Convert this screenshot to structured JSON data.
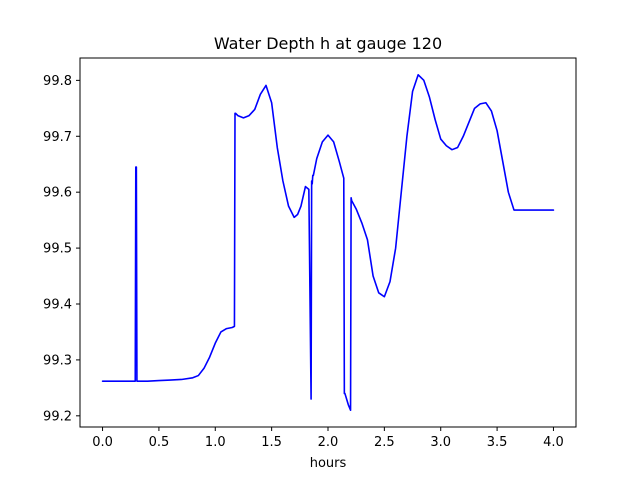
{
  "chart_data": {
    "type": "line",
    "title": "Water Depth h at gauge 120",
    "xlabel": "hours",
    "ylabel": "",
    "xlim": [
      -0.2,
      4.2
    ],
    "ylim": [
      99.18,
      99.84
    ],
    "xticks": [
      0.0,
      0.5,
      1.0,
      1.5,
      2.0,
      2.5,
      3.0,
      3.5,
      4.0
    ],
    "xtick_labels": [
      "0.0",
      "0.5",
      "1.0",
      "1.5",
      "2.0",
      "2.5",
      "3.0",
      "3.5",
      "4.0"
    ],
    "yticks": [
      99.2,
      99.3,
      99.4,
      99.5,
      99.6,
      99.7,
      99.8
    ],
    "ytick_labels": [
      "99.2",
      "99.3",
      "99.4",
      "99.5",
      "99.6",
      "99.7",
      "99.8"
    ],
    "grid": false,
    "legend": "none",
    "colors": {
      "line": "#0000ff",
      "axes": "#000000",
      "background": "#ffffff"
    },
    "series": [
      {
        "x": [
          0.0,
          0.28,
          0.29,
          0.295,
          0.3,
          0.305,
          0.31,
          0.32,
          0.4,
          0.5,
          0.6,
          0.7,
          0.8,
          0.85,
          0.9,
          0.95,
          1.0,
          1.05,
          1.1,
          1.15,
          1.17,
          1.175,
          1.18,
          1.2,
          1.25,
          1.3,
          1.35,
          1.4,
          1.45,
          1.5,
          1.55,
          1.6,
          1.65,
          1.7,
          1.73,
          1.76,
          1.8,
          1.83,
          1.85,
          1.855,
          1.86,
          1.865,
          1.87,
          1.9,
          1.95,
          2.0,
          2.05,
          2.1,
          2.14,
          2.145,
          2.15,
          2.18,
          2.2,
          2.205,
          2.21,
          2.25,
          2.3,
          2.35,
          2.4,
          2.45,
          2.5,
          2.55,
          2.6,
          2.65,
          2.7,
          2.75,
          2.8,
          2.85,
          2.9,
          2.95,
          3.0,
          3.05,
          3.1,
          3.15,
          3.2,
          3.25,
          3.3,
          3.35,
          3.4,
          3.45,
          3.5,
          3.55,
          3.6,
          3.65,
          3.7,
          3.75,
          3.8,
          3.85,
          3.9,
          3.95,
          4.0
        ],
        "y": [
          99.262,
          99.262,
          99.262,
          99.645,
          99.645,
          99.262,
          99.262,
          99.262,
          99.262,
          99.263,
          99.264,
          99.265,
          99.268,
          99.272,
          99.285,
          99.305,
          99.33,
          99.35,
          99.356,
          99.358,
          99.36,
          99.741,
          99.741,
          99.737,
          99.733,
          99.737,
          99.748,
          99.775,
          99.791,
          99.76,
          99.68,
          99.62,
          99.575,
          99.555,
          99.56,
          99.575,
          99.61,
          99.605,
          99.23,
          99.62,
          99.615,
          99.63,
          99.63,
          99.66,
          99.69,
          99.702,
          99.69,
          99.655,
          99.625,
          99.24,
          99.24,
          99.22,
          99.21,
          99.59,
          99.585,
          99.57,
          99.545,
          99.515,
          99.45,
          99.42,
          99.413,
          99.44,
          99.5,
          99.6,
          99.7,
          99.78,
          99.81,
          99.8,
          99.77,
          99.73,
          99.695,
          99.683,
          99.676,
          99.68,
          99.7,
          99.725,
          99.75,
          99.758,
          99.76,
          99.745,
          99.71,
          99.655,
          99.6,
          99.568,
          99.568,
          99.568,
          99.568,
          99.568,
          99.568,
          99.568,
          99.568
        ]
      }
    ]
  }
}
